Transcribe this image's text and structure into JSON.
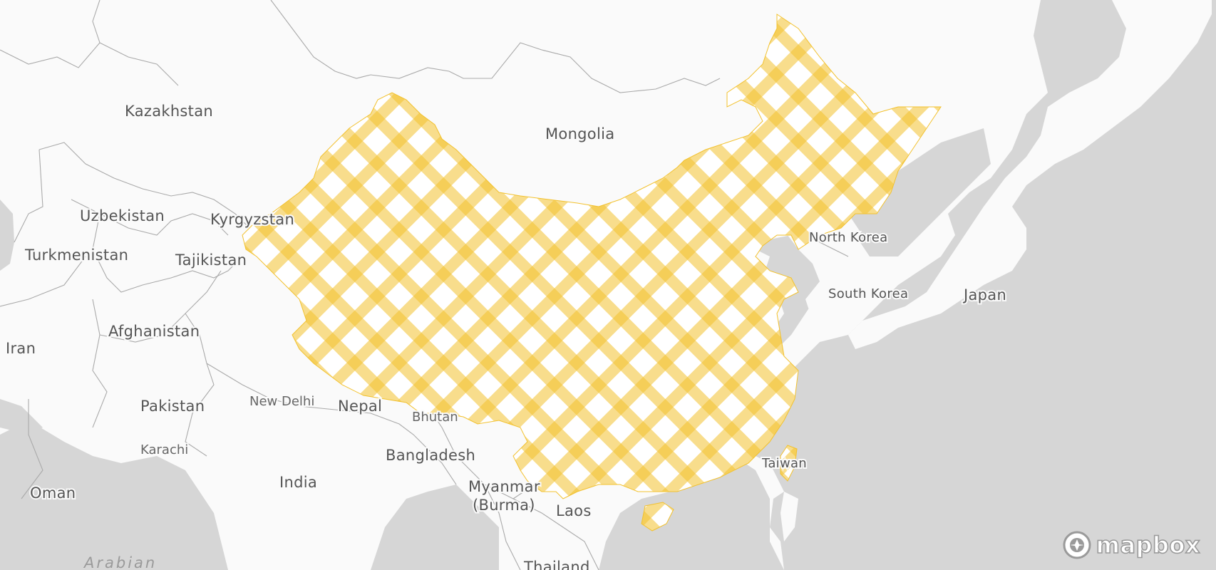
{
  "map": {
    "colors": {
      "land": "#fafafa",
      "water": "#d6d6d6",
      "border": "#aaaaaa",
      "label": "#555555",
      "pattern_yellow": "#f2c12e",
      "pattern_bg": "#ffffff"
    },
    "highlighted_region": "China",
    "fill_style": "yellow-gingham-pattern"
  },
  "labels": {
    "kazakhstan": "Kazakhstan",
    "mongolia": "Mongolia",
    "uzbekistan": "Uzbekistan",
    "kyrgyzstan": "Kyrgyzstan",
    "turkmenistan": "Turkmenistan",
    "tajikistan": "Tajikistan",
    "north_korea": "North Korea",
    "south_korea": "South Korea",
    "japan": "Japan",
    "iran": "Iran",
    "afghanistan": "Afghanistan",
    "pakistan": "Pakistan",
    "new_delhi": "New Delhi",
    "nepal": "Nepal",
    "bhutan": "Bhutan",
    "karachi": "Karachi",
    "bangladesh": "Bangladesh",
    "oman": "Oman",
    "india": "India",
    "myanmar_line1": "Myanmar",
    "myanmar_line2": "(Burma)",
    "laos": "Laos",
    "taiwan": "Taiwan",
    "thailand": "Thailand",
    "arabian": "Arabian"
  },
  "attribution": {
    "logo_text": "mapbox",
    "logo_icon": "mapbox-compass-icon"
  }
}
